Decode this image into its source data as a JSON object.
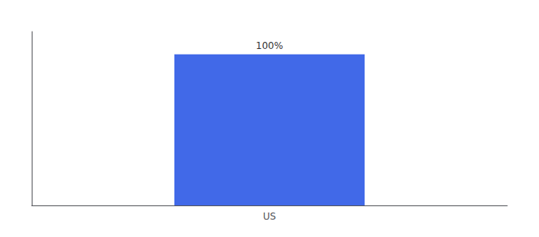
{
  "chart_data": {
    "type": "bar",
    "categories": [
      "US"
    ],
    "values": [
      100
    ],
    "value_labels": [
      "100%"
    ],
    "data_labels": true,
    "color": "#4169E8",
    "ylim": [
      0,
      115
    ],
    "grid": false,
    "tick_labels": "x"
  }
}
